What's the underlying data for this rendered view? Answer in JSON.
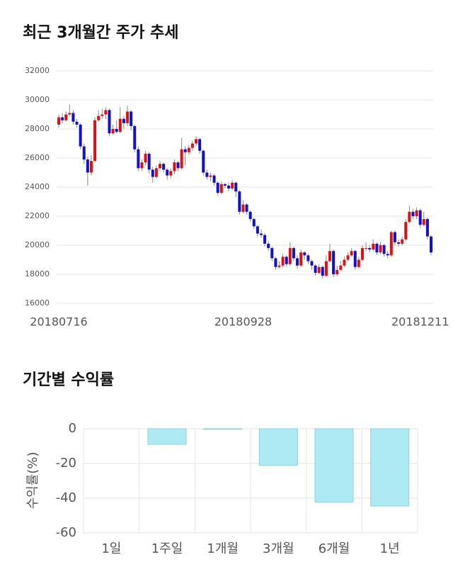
{
  "chart_data": [
    {
      "type": "candlestick",
      "title": "최근 3개월간 주가 추세",
      "categories": [
        "20180716",
        null,
        null,
        null,
        null,
        null,
        null,
        null,
        null,
        null,
        null,
        null,
        null,
        null,
        null,
        null,
        null,
        null,
        null,
        null,
        null,
        null,
        null,
        null,
        null,
        null,
        null,
        null,
        null,
        null,
        null,
        null,
        null,
        null,
        null,
        null,
        null,
        null,
        null,
        null,
        null,
        null,
        null,
        null,
        null,
        null,
        null,
        null,
        null,
        null,
        null,
        "20180928",
        null,
        null,
        null,
        null,
        null,
        null,
        null,
        null,
        null,
        null,
        null,
        null,
        null,
        null,
        null,
        null,
        null,
        null,
        null,
        null,
        null,
        null,
        null,
        null,
        null,
        null,
        null,
        null,
        null,
        null,
        null,
        null,
        null,
        null,
        null,
        null,
        null,
        null,
        null,
        null,
        null,
        null,
        null,
        null,
        null,
        null,
        null,
        null,
        "20181211",
        null,
        null,
        null
      ],
      "open": [
        28300,
        28800,
        28600,
        29000,
        29100,
        28500,
        28300,
        26800,
        25900,
        25000,
        25800,
        28600,
        28900,
        29000,
        29300,
        27700,
        28000,
        27800,
        28700,
        28400,
        29200,
        28200,
        26600,
        25300,
        25700,
        26300,
        25200,
        24700,
        25300,
        25600,
        25200,
        24800,
        25100,
        25700,
        25300,
        26600,
        26400,
        26700,
        27000,
        27300,
        26500,
        25000,
        24700,
        24800,
        24300,
        23600,
        24200,
        24100,
        23900,
        24300,
        23700,
        22300,
        22800,
        22300,
        21800,
        21300,
        20800,
        20700,
        20100,
        19800,
        19100,
        18500,
        18600,
        19200,
        18700,
        19800,
        19100,
        18600,
        19500,
        19300,
        18900,
        18600,
        18100,
        18500,
        17900,
        18900,
        19600,
        18000,
        18300,
        18600,
        19000,
        19300,
        19600,
        18500,
        19000,
        19800,
        19800,
        19700,
        20100,
        19500,
        20000,
        19400,
        19300,
        20900,
        20200,
        20100,
        20400,
        21600,
        22300,
        22000,
        22400,
        21400,
        21800,
        20600
      ],
      "high": [
        29000,
        29100,
        29200,
        29700,
        29300,
        28700,
        28400,
        27000,
        26100,
        26200,
        28800,
        29300,
        29400,
        29500,
        29400,
        28300,
        28600,
        29500,
        28900,
        29600,
        29300,
        28300,
        26800,
        25900,
        26500,
        26400,
        25400,
        25500,
        25800,
        25700,
        25300,
        25300,
        25900,
        25800,
        27400,
        26800,
        26900,
        27200,
        27500,
        27400,
        26600,
        25200,
        25000,
        24900,
        24400,
        24400,
        24300,
        24300,
        24500,
        24400,
        23800,
        23100,
        22900,
        22400,
        21900,
        21400,
        21100,
        20800,
        20300,
        19900,
        19200,
        18900,
        19400,
        19300,
        20200,
        19900,
        19300,
        19700,
        19600,
        19400,
        19000,
        18700,
        18700,
        18600,
        19300,
        20100,
        19700,
        18600,
        18900,
        19200,
        19500,
        19800,
        19700,
        19200,
        20000,
        20200,
        20000,
        20400,
        20200,
        20200,
        20100,
        19600,
        21000,
        21000,
        20400,
        20600,
        21800,
        22700,
        22500,
        22600,
        22500,
        22300,
        21900,
        20700
      ],
      "low": [
        28100,
        28400,
        28500,
        28900,
        28300,
        28100,
        26600,
        25600,
        24100,
        24800,
        25700,
        28500,
        28700,
        28700,
        27500,
        27600,
        27700,
        27700,
        28000,
        28200,
        27900,
        26400,
        25100,
        25100,
        25500,
        24900,
        24300,
        24600,
        25100,
        25000,
        24500,
        24600,
        24900,
        25100,
        25200,
        25500,
        26200,
        26500,
        26800,
        26300,
        24800,
        24500,
        24400,
        24100,
        23400,
        23500,
        23900,
        23700,
        23800,
        23300,
        22100,
        22200,
        22100,
        21600,
        21100,
        20600,
        20500,
        19900,
        19600,
        18900,
        18300,
        18400,
        18500,
        18500,
        18600,
        18900,
        18400,
        18500,
        19000,
        18700,
        18300,
        17900,
        18000,
        17700,
        17800,
        18800,
        17800,
        17900,
        18200,
        18500,
        18900,
        19200,
        18300,
        18400,
        18900,
        19600,
        19500,
        19600,
        19300,
        19400,
        19200,
        19100,
        19200,
        20000,
        19900,
        20000,
        20300,
        21500,
        21800,
        21800,
        21200,
        21300,
        20400,
        19300
      ],
      "close": [
        28800,
        28600,
        29000,
        29100,
        28500,
        28300,
        26800,
        25900,
        25000,
        25800,
        28600,
        28900,
        29000,
        29300,
        27700,
        28000,
        27800,
        28700,
        28400,
        29200,
        28200,
        26600,
        25300,
        25700,
        26300,
        25200,
        24700,
        25300,
        25600,
        25200,
        24800,
        25100,
        25700,
        25300,
        26600,
        26400,
        26700,
        27000,
        27300,
        26500,
        25000,
        24700,
        24800,
        24300,
        23600,
        24200,
        24100,
        23900,
        24300,
        23700,
        22300,
        22800,
        22300,
        21800,
        21300,
        20800,
        20700,
        20100,
        19800,
        19100,
        18500,
        18600,
        19200,
        18700,
        19800,
        19100,
        18600,
        19500,
        19300,
        18900,
        18600,
        18100,
        18500,
        17900,
        18900,
        19600,
        18000,
        18300,
        18600,
        19000,
        19300,
        19600,
        18500,
        19000,
        19800,
        19800,
        19700,
        20100,
        19500,
        20000,
        19400,
        19300,
        20900,
        20200,
        20100,
        20400,
        21600,
        22300,
        22000,
        22400,
        21400,
        21800,
        20600,
        19500
      ],
      "up_color": "#dd1111",
      "down_color": "#1111cc",
      "ylim": [
        16000,
        32000
      ],
      "yticks": [
        16000,
        18000,
        20000,
        22000,
        24000,
        26000,
        28000,
        30000,
        32000
      ],
      "grid": true
    },
    {
      "type": "bar",
      "title": "기간별 수익률",
      "ylabel": "수익률(%)",
      "categories": [
        "1일",
        "1주일",
        "1개월",
        "3개월",
        "6개월",
        "1년"
      ],
      "values": [
        0,
        -9,
        -0.3,
        -21,
        -42.2,
        -44.5
      ],
      "color": "#aeeaf4",
      "edge_color": "#8ccfdc",
      "ylim": [
        -60,
        0
      ],
      "yticks": [
        -60,
        -40,
        -20,
        0
      ],
      "grid": true
    }
  ]
}
